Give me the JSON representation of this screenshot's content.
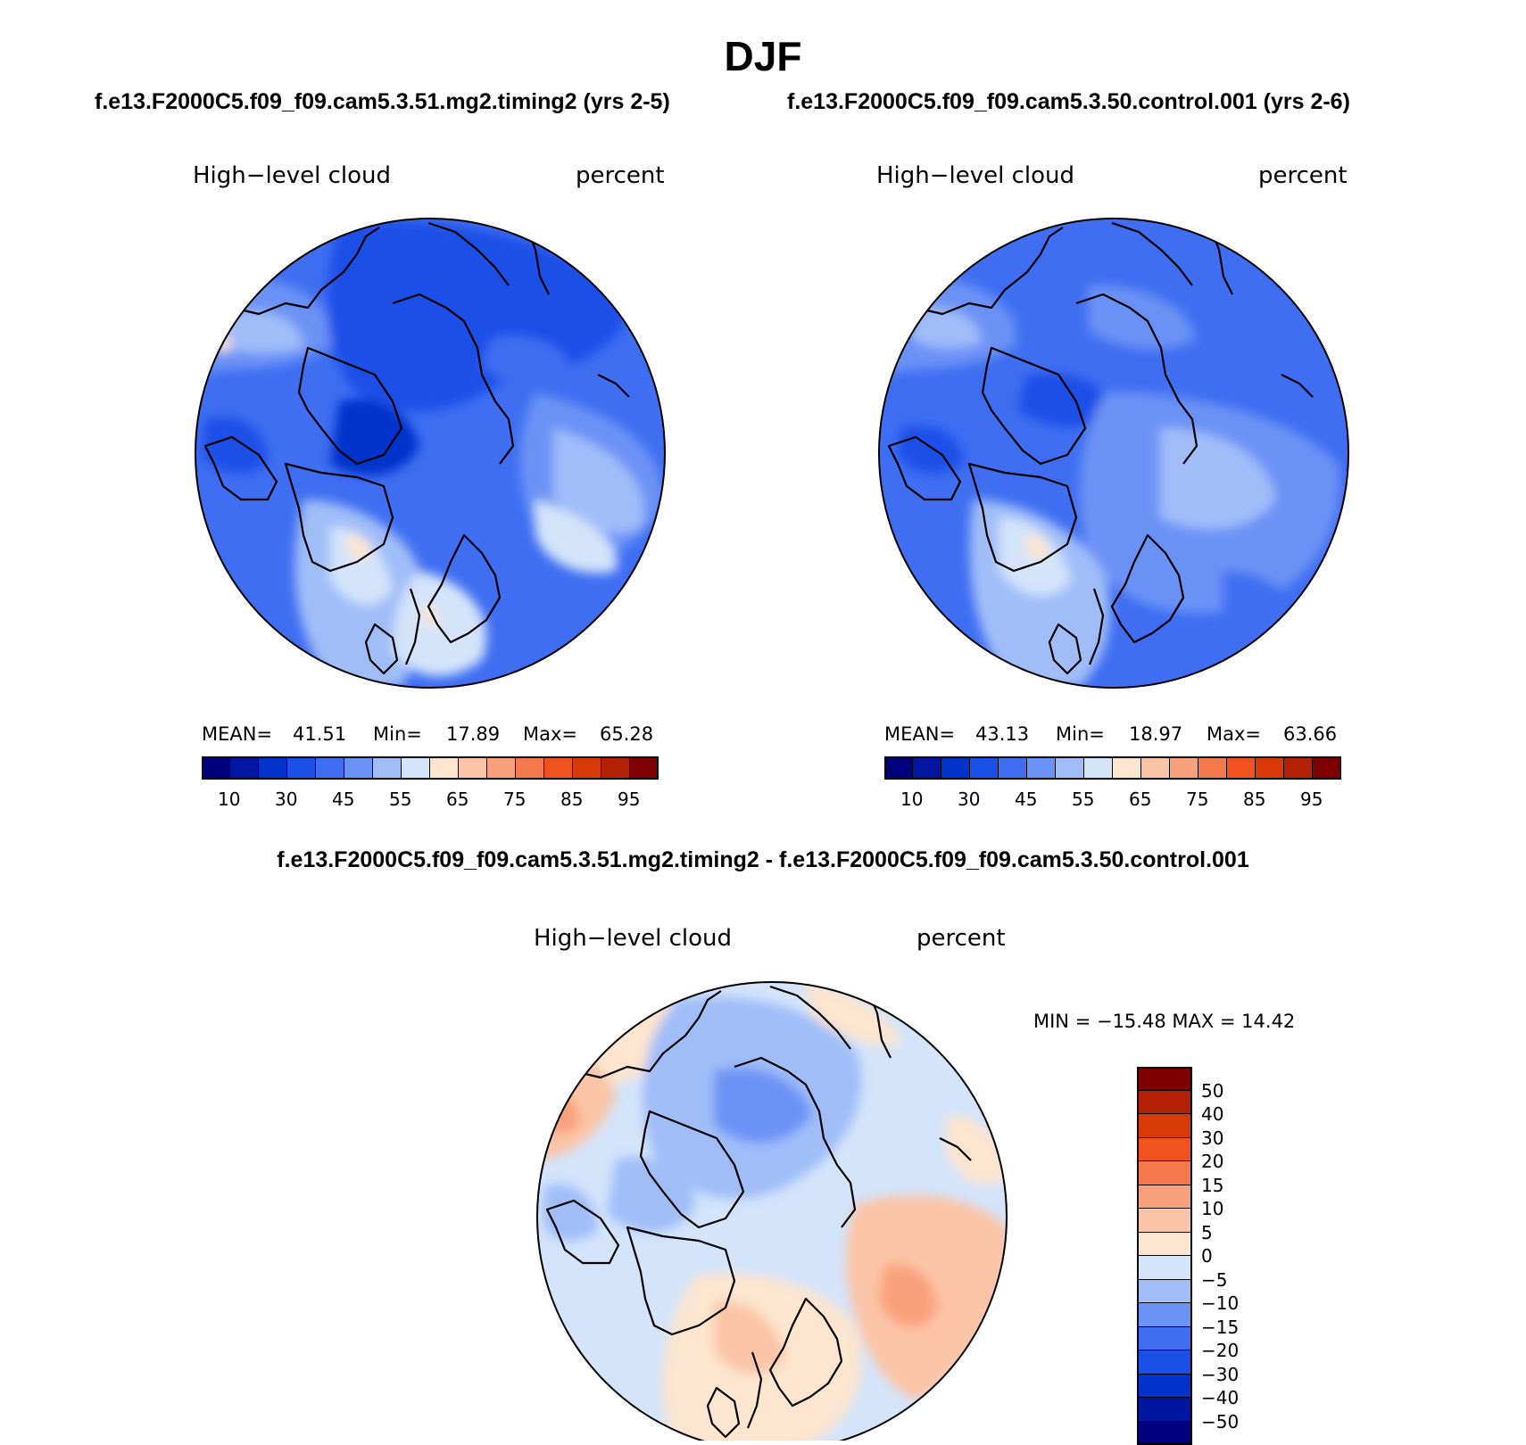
{
  "title": "DJF",
  "case1_label": "f.e13.F2000C5.f09_f09.cam5.3.51.mg2.timing2 (yrs 2-5)",
  "case2_label": "f.e13.F2000C5.f09_f09.cam5.3.50.control.001 (yrs 2-6)",
  "diff_label": "f.e13.F2000C5.f09_f09.cam5.3.51.mg2.timing2 - f.e13.F2000C5.f09_f09.cam5.3.50.control.001",
  "panels": [
    {
      "variable": "High−level cloud",
      "units": "percent",
      "mean_label": "MEAN=",
      "mean": "41.51",
      "min_label": "Min=",
      "min": "17.89",
      "max_label": "Max=",
      "max": "65.28"
    },
    {
      "variable": "High−level cloud",
      "units": "percent",
      "mean_label": "MEAN=",
      "mean": "43.13",
      "min_label": "Min=",
      "min": "18.97",
      "max_label": "Max=",
      "max": "63.66"
    },
    {
      "variable": "High−level cloud",
      "units": "percent",
      "minmax": "MIN = −15.48 MAX =   14.42"
    }
  ],
  "colorbar_abs": {
    "colors": [
      "#00007f",
      "#0016a0",
      "#0033cc",
      "#1a4fe8",
      "#3f6ef2",
      "#6b92f6",
      "#a0bdf8",
      "#d3e4fb",
      "#fde5cf",
      "#fcc4a6",
      "#f9a07c",
      "#f47a4e",
      "#f0531f",
      "#d83a08",
      "#b32005",
      "#7f0000"
    ],
    "tick_labels": [
      "10",
      "30",
      "45",
      "55",
      "65",
      "75",
      "85",
      "95"
    ]
  },
  "colorbar_diff": {
    "colors": [
      "#7f0000",
      "#b32005",
      "#d83a08",
      "#f0531f",
      "#f47a4e",
      "#f9a07c",
      "#fcc4a6",
      "#fde5cf",
      "#d3e4fb",
      "#a0bdf8",
      "#6b92f6",
      "#3f6ef2",
      "#1a4fe8",
      "#0033cc",
      "#0016a0",
      "#00007f"
    ],
    "tick_labels": [
      "50",
      "40",
      "30",
      "20",
      "15",
      "10",
      "5",
      "0",
      "−5",
      "−10",
      "−15",
      "−20",
      "−30",
      "−40",
      "−50"
    ]
  }
}
